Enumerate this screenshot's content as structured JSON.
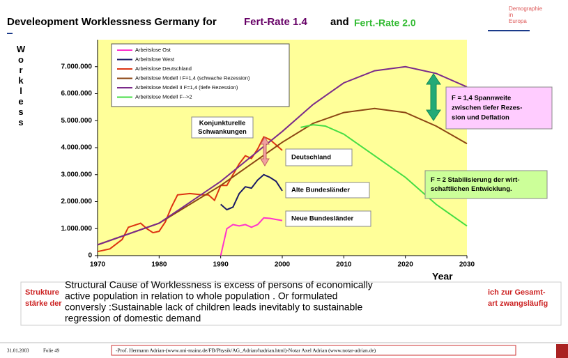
{
  "slide": {
    "title_parts": [
      "Develeopment Worklessness Germany for",
      "Fert-Rate 1.4",
      "and",
      "Fert.-Rate 2.0"
    ],
    "logo": [
      "Demographie",
      "in",
      "Europa"
    ],
    "box_text": [
      "Structural Cause of Worklessness is excess of persons of economically",
      "active population in relation to whole population . Or formulated",
      "conversly :Sustainable lack of children leads inevitably to sustainable",
      "regression of domestic demand"
    ],
    "hidden_text": [
      "Strukture",
      "stärke der",
      "ich zur Gesamt-",
      "art zwangsläufig"
    ],
    "footer_date": "31.01.2003",
    "footer_slide": "Folie 49",
    "footer_credit": "-Prof. Hermann Adrian-(www.uni-mainz.de/FB/Physik/AG_Adrian/hadrian.html)-Notar Axel Adrian (www.notar-adrian.de)"
  },
  "chart_data": {
    "type": "line",
    "ylabel": "Workless",
    "xlabel": "Year",
    "xlim": [
      1970,
      2030
    ],
    "xticks": [
      1970,
      1980,
      1990,
      2000,
      2010,
      2020,
      2030
    ],
    "ylim": [
      0,
      8000000
    ],
    "yticks": [
      0,
      {
        "value": 1000000,
        "label": "1.000.000"
      },
      {
        "value": 2000000,
        "label": "2.000.000"
      },
      {
        "value": 3000000,
        "label": "3.000.000"
      },
      {
        "value": 4000000,
        "label": "4.000.000"
      },
      {
        "value": 5000000,
        "label": "5.000.000"
      },
      {
        "value": 6000000,
        "label": "6.000.000"
      },
      {
        "value": 7000000,
        "label": "7.000.000"
      }
    ],
    "grid": false,
    "background": "#ffff99",
    "series": [
      {
        "name": "Arbeitslose Ost",
        "color": "#ff33cc",
        "x": [
          1990,
          1991,
          1992,
          1993,
          1994,
          1995,
          1996,
          1997,
          1998,
          1999,
          2000
        ],
        "values": [
          0,
          1000000,
          1150000,
          1100000,
          1150000,
          1050000,
          1150000,
          1400000,
          1380000,
          1340000,
          1300000
        ]
      },
      {
        "name": "Arbeitslose West",
        "color": "#1a1a66",
        "x": [
          1990,
          1991,
          1992,
          1993,
          1994,
          1995,
          1996,
          1997,
          1998,
          1999,
          2000
        ],
        "values": [
          1900000,
          1700000,
          1800000,
          2300000,
          2550000,
          2500000,
          2800000,
          3000000,
          2900000,
          2750000,
          2400000
        ]
      },
      {
        "name": "Arbeitslose Deutschland",
        "color": "#dd3311",
        "x": [
          1970,
          1972,
          1974,
          1975,
          1977,
          1978,
          1979,
          1980,
          1981,
          1982,
          1983,
          1985,
          1987,
          1988,
          1989,
          1990,
          1991,
          1992,
          1993,
          1994,
          1995,
          1996,
          1997,
          1998,
          1999,
          2000
        ],
        "values": [
          150000,
          250000,
          600000,
          1050000,
          1200000,
          1000000,
          850000,
          900000,
          1250000,
          1800000,
          2250000,
          2300000,
          2250000,
          2250000,
          2050000,
          2600000,
          2600000,
          3000000,
          3400000,
          3700000,
          3600000,
          3950000,
          4400000,
          4300000,
          4100000,
          3900000
        ]
      },
      {
        "name": "Arbeitslose Modell I   F=1,4 (schwache Rezession)",
        "color": "#8b4513",
        "x": [
          1970,
          1980,
          1990,
          2000,
          2005,
          2010,
          2015,
          2020,
          2025,
          2030
        ],
        "values": [
          400000,
          1200000,
          2600000,
          4200000,
          4900000,
          5300000,
          5450000,
          5300000,
          4800000,
          4150000
        ]
      },
      {
        "name": "Arbeitslose Modell II F=1,4 (tiefe Rezession)",
        "color": "#7a2a8a",
        "x": [
          1970,
          1980,
          1990,
          2000,
          2005,
          2010,
          2015,
          2020,
          2025,
          2030
        ],
        "values": [
          400000,
          1200000,
          2750000,
          4600000,
          5600000,
          6400000,
          6850000,
          7000000,
          6750000,
          6250000
        ]
      },
      {
        "name": "Arbeitslose Modell F-->2",
        "color": "#44dd44",
        "x": [
          2003,
          2005,
          2007,
          2010,
          2015,
          2020,
          2025,
          2030
        ],
        "values": [
          4750000,
          4850000,
          4800000,
          4500000,
          3700000,
          2900000,
          1900000,
          1100000
        ]
      }
    ],
    "annotations": [
      {
        "lines": [
          "Konjunkturelle",
          "Schwankungen"
        ]
      },
      {
        "lines": [
          "Deutschland"
        ]
      },
      {
        "lines": [
          "Alte Bundesländer"
        ]
      },
      {
        "lines": [
          "Neue Bundesländer"
        ]
      },
      {
        "lines": [
          "F = 1,4 Spannweite",
          "zwischen tiefer Rezes-",
          "sion und Deflation"
        ]
      },
      {
        "lines": [
          "F = 2 Stabilisierung der wirt-",
          "schaftlichen Entwicklung."
        ]
      }
    ]
  }
}
